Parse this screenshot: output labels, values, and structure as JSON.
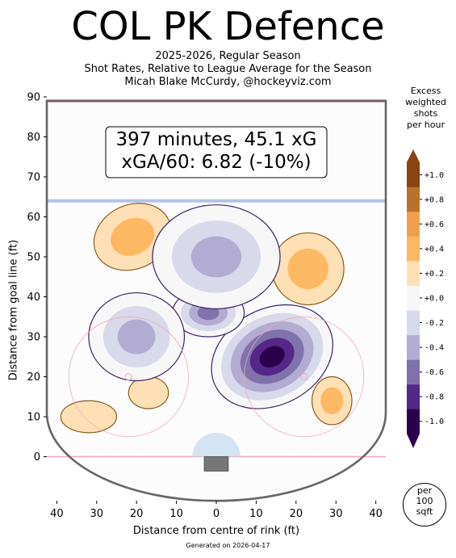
{
  "title": "COL PK Defence",
  "subtitle_lines": [
    "2025-2026, Regular Season",
    "Shot Rates, Relative to League Average for the Season",
    "Micah Blake McCurdy, @hockeyviz.com"
  ],
  "annotation": {
    "line1": "397 minutes, 45.1 xG",
    "line2": "xGA/60: 6.82 (-10%)"
  },
  "colorbar_title_lines": [
    "Excess",
    "weighted",
    "shots",
    "per hour"
  ],
  "per_unit_lines": [
    "per",
    "100",
    "sqft"
  ],
  "generated": "Generated on 2026-04-17",
  "colors": {
    "excess_darkest": "#f7c9a0",
    "excess_dark": "#f8b570",
    "deficit_light": "#dedce9",
    "deficit_mid": "#b8b4d2",
    "deficit_dark": "#6e5c95",
    "deficit_darkest": "#3a0b53",
    "rink_line": "#666666"
  },
  "chart_data": {
    "type": "heatmap",
    "xlabel": "Distance from centre of rink (ft)",
    "ylabel": "Distance from goal line (ft)",
    "x_ticks": [
      "40",
      "30",
      "20",
      "10",
      "0",
      "10",
      "20",
      "30",
      "40"
    ],
    "x_tick_values": [
      -40,
      -30,
      -20,
      -10,
      0,
      10,
      20,
      30,
      40
    ],
    "y_ticks": [
      "0",
      "10",
      "20",
      "30",
      "40",
      "50",
      "60",
      "70",
      "80",
      "90"
    ],
    "y_tick_values": [
      0,
      10,
      20,
      30,
      40,
      50,
      60,
      70,
      80,
      90
    ],
    "xlim": [
      -42.5,
      42.5
    ],
    "ylim": [
      -11,
      90
    ],
    "colorbar": {
      "levels": [
        -1.1,
        -0.9,
        -0.7,
        -0.5,
        -0.3,
        -0.1,
        0.1,
        0.3,
        0.5,
        0.7,
        0.9,
        1.1
      ],
      "tick_labels": [
        "+1.0",
        "+0.8",
        "+0.6",
        "+0.4",
        "+0.2",
        "+0.0",
        "-0.2",
        "-0.4",
        "-0.6",
        "-0.8",
        "-1.0"
      ],
      "tick_values": [
        1.0,
        0.8,
        0.6,
        0.4,
        0.2,
        0.0,
        -0.2,
        -0.4,
        -0.6,
        -0.8,
        -1.0
      ],
      "band_colors": [
        "#2d004b",
        "#542788",
        "#8073ac",
        "#b2abd2",
        "#d8daeb",
        "#f7f7f7",
        "#fee0b6",
        "#fdb863",
        "#f0a04a",
        "#b8732b",
        "#8a4512"
      ]
    },
    "regions": [
      {
        "sign": "excess",
        "cx": -21,
        "cy": 55,
        "rx": 10,
        "ry": 8,
        "peak": 0.5
      },
      {
        "sign": "excess",
        "cx": 23,
        "cy": 47,
        "rx": 9,
        "ry": 9,
        "peak": 0.45
      },
      {
        "sign": "excess",
        "cx": 29,
        "cy": 14,
        "rx": 5,
        "ry": 6,
        "peak": 0.35
      },
      {
        "sign": "excess",
        "cx": -32,
        "cy": 10,
        "rx": 7,
        "ry": 4,
        "peak": 0.3
      },
      {
        "sign": "excess",
        "cx": -17,
        "cy": 16,
        "rx": 5,
        "ry": 4,
        "peak": 0.3
      },
      {
        "sign": "deficit",
        "cx": 14,
        "cy": 25,
        "rx": 16,
        "ry": 12,
        "peak": -1.3
      },
      {
        "sign": "deficit",
        "cx": 7,
        "cy": 51,
        "rx": 8,
        "ry": 7,
        "peak": -0.7
      },
      {
        "sign": "deficit",
        "cx": -2,
        "cy": 36,
        "rx": 9,
        "ry": 6,
        "peak": -0.6
      },
      {
        "sign": "deficit",
        "cx": -20,
        "cy": 30,
        "rx": 12,
        "ry": 11,
        "peak": -0.45
      },
      {
        "sign": "deficit",
        "cx": 0,
        "cy": 50,
        "rx": 16,
        "ry": 13,
        "peak": -0.35
      }
    ]
  }
}
